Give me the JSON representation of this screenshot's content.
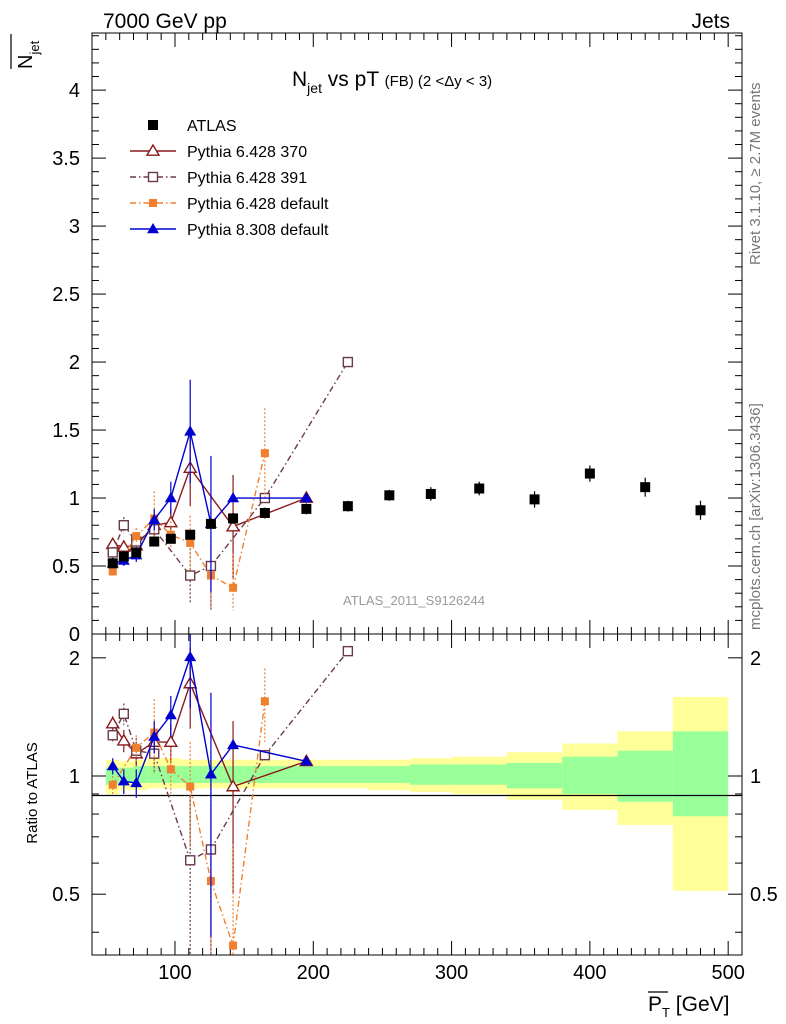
{
  "header": {
    "left": "7000 GeV pp",
    "right": "Jets"
  },
  "side_labels": {
    "rivet": "Rivet 3.1.10, ≥ 2.7M events",
    "mcplots": "mcplots.cern.ch [arXiv:1306.3436]"
  },
  "chart_data": [
    {
      "type": "scatter",
      "title_main": "N",
      "title_sub": "jet",
      "title_rest": " vs pT ",
      "title_small": "(FB) (2 <Δy < 3)",
      "ylabel_main": "N",
      "ylabel_sub": "jet",
      "ylim": [
        0,
        4.42
      ],
      "yticks": [
        "0",
        "0.5",
        "1",
        "1.5",
        "2",
        "2.5",
        "3",
        "3.5",
        "4"
      ],
      "watermark": "ATLAS_2011_S9126244",
      "legend_position": "top-left",
      "series": [
        {
          "name": "ATLAS",
          "color": "#000000",
          "marker": "square-filled",
          "line": "none",
          "x": [
            55,
            63,
            72,
            85,
            97,
            111,
            126,
            142,
            165,
            195,
            225,
            255,
            285,
            320,
            360,
            400,
            440,
            480
          ],
          "y": [
            0.52,
            0.57,
            0.6,
            0.68,
            0.7,
            0.73,
            0.81,
            0.85,
            0.89,
            0.92,
            0.94,
            1.02,
            1.03,
            1.07,
            0.99,
            1.18,
            1.08,
            0.91
          ],
          "err": [
            0.01,
            0.01,
            0.02,
            0.02,
            0.03,
            0.03,
            0.03,
            0.04,
            0.04,
            0.04,
            0.04,
            0.04,
            0.05,
            0.05,
            0.06,
            0.06,
            0.07,
            0.07
          ]
        },
        {
          "name": "Pythia 6.428 370",
          "color": "#8b1a1a",
          "marker": "triangle-open",
          "line": "solid",
          "x": [
            55,
            63,
            72,
            85,
            97,
            111,
            142,
            195
          ],
          "y": [
            0.66,
            0.64,
            0.65,
            0.8,
            0.82,
            1.22,
            0.79,
            1.0
          ],
          "err": [
            0.04,
            0.05,
            0.05,
            0.07,
            0.1,
            0.28,
            0.38,
            0.0
          ]
        },
        {
          "name": "Pythia 6.428 391",
          "color": "#6b3a4a",
          "marker": "square-open",
          "line": "dashdot",
          "x": [
            55,
            63,
            72,
            85,
            111,
            126,
            165,
            225
          ],
          "y": [
            0.6,
            0.8,
            0.68,
            0.77,
            0.43,
            0.5,
            1.0,
            2.0
          ],
          "err": [
            0.04,
            0.06,
            0.06,
            0.08,
            0.2,
            0.4,
            0.0,
            0.0
          ]
        },
        {
          "name": "Pythia 6.428 default",
          "color": "#f08030",
          "marker": "square-filled-small",
          "line": "dashdot",
          "x": [
            55,
            72,
            85,
            97,
            111,
            126,
            142,
            165
          ],
          "y": [
            0.46,
            0.72,
            0.85,
            0.73,
            0.67,
            0.43,
            0.34,
            1.33
          ],
          "err": [
            0.03,
            0.06,
            0.2,
            0.1,
            0.2,
            0.25,
            0.25,
            0.33
          ]
        },
        {
          "name": "Pythia 8.308 default",
          "color": "#0000d0",
          "marker": "triangle-filled",
          "line": "solid",
          "x": [
            55,
            63,
            72,
            85,
            97,
            111,
            126,
            142,
            195
          ],
          "y": [
            0.52,
            0.54,
            0.58,
            0.84,
            1.0,
            1.49,
            0.81,
            1.0,
            1.0
          ],
          "err": [
            0.03,
            0.04,
            0.05,
            0.08,
            0.12,
            0.38,
            0.5,
            0.0,
            0.0
          ]
        }
      ]
    },
    {
      "type": "scatter",
      "ylabel": "Ratio to ATLAS",
      "ylim": [
        0.35,
        2.3
      ],
      "yticks": [
        "0.5",
        "1",
        "2"
      ],
      "xlabel_main": "P",
      "xlabel_sub": "T",
      "xlabel_unit": " [GeV]",
      "xlim": [
        40,
        510
      ],
      "xticks": [
        "100",
        "200",
        "300",
        "400",
        "500"
      ],
      "bands": {
        "yellow_color": "#ffff99",
        "green_color": "#99ff99",
        "bins": [
          {
            "x0": 50,
            "x1": 60,
            "y_lo": 0.9,
            "y_hi": 1.1,
            "g_lo": 0.95,
            "g_hi": 1.05
          },
          {
            "x0": 60,
            "x1": 70,
            "y_lo": 0.92,
            "y_hi": 1.09,
            "g_lo": 0.96,
            "g_hi": 1.05
          },
          {
            "x0": 70,
            "x1": 80,
            "y_lo": 0.92,
            "y_hi": 1.1,
            "g_lo": 0.96,
            "g_hi": 1.06
          },
          {
            "x0": 80,
            "x1": 90,
            "y_lo": 0.93,
            "y_hi": 1.11,
            "g_lo": 0.96,
            "g_hi": 1.06
          },
          {
            "x0": 90,
            "x1": 105,
            "y_lo": 0.93,
            "y_hi": 1.11,
            "g_lo": 0.96,
            "g_hi": 1.06
          },
          {
            "x0": 105,
            "x1": 120,
            "y_lo": 0.93,
            "y_hi": 1.1,
            "g_lo": 0.96,
            "g_hi": 1.06
          },
          {
            "x0": 120,
            "x1": 135,
            "y_lo": 0.93,
            "y_hi": 1.1,
            "g_lo": 0.96,
            "g_hi": 1.06
          },
          {
            "x0": 135,
            "x1": 150,
            "y_lo": 0.93,
            "y_hi": 1.1,
            "g_lo": 0.96,
            "g_hi": 1.06
          },
          {
            "x0": 150,
            "x1": 180,
            "y_lo": 0.93,
            "y_hi": 1.1,
            "g_lo": 0.96,
            "g_hi": 1.06
          },
          {
            "x0": 180,
            "x1": 210,
            "y_lo": 0.93,
            "y_hi": 1.1,
            "g_lo": 0.96,
            "g_hi": 1.06
          },
          {
            "x0": 210,
            "x1": 240,
            "y_lo": 0.93,
            "y_hi": 1.1,
            "g_lo": 0.96,
            "g_hi": 1.06
          },
          {
            "x0": 240,
            "x1": 270,
            "y_lo": 0.92,
            "y_hi": 1.1,
            "g_lo": 0.96,
            "g_hi": 1.06
          },
          {
            "x0": 270,
            "x1": 300,
            "y_lo": 0.91,
            "y_hi": 1.11,
            "g_lo": 0.95,
            "g_hi": 1.07
          },
          {
            "x0": 300,
            "x1": 340,
            "y_lo": 0.9,
            "y_hi": 1.12,
            "g_lo": 0.95,
            "g_hi": 1.07
          },
          {
            "x0": 340,
            "x1": 380,
            "y_lo": 0.87,
            "y_hi": 1.15,
            "g_lo": 0.93,
            "g_hi": 1.08
          },
          {
            "x0": 380,
            "x1": 420,
            "y_lo": 0.82,
            "y_hi": 1.21,
            "g_lo": 0.9,
            "g_hi": 1.12
          },
          {
            "x0": 420,
            "x1": 460,
            "y_lo": 0.75,
            "y_hi": 1.3,
            "g_lo": 0.86,
            "g_hi": 1.16
          },
          {
            "x0": 460,
            "x1": 500,
            "y_lo": 0.51,
            "y_hi": 1.59,
            "g_lo": 0.79,
            "g_hi": 1.3
          }
        ]
      },
      "series": [
        {
          "name": "Pythia 6.428 370",
          "x": [
            55,
            63,
            72,
            85,
            97,
            111,
            142,
            195
          ],
          "y": [
            1.36,
            1.23,
            1.14,
            1.22,
            1.22,
            1.72,
            0.94,
            1.09
          ],
          "err": [
            0.06,
            0.08,
            0.08,
            0.1,
            0.14,
            0.4,
            0.44,
            0.0
          ]
        },
        {
          "name": "Pythia 6.428 391",
          "x": [
            55,
            63,
            72,
            85,
            111,
            126,
            165,
            225
          ],
          "y": [
            1.27,
            1.44,
            1.16,
            1.14,
            0.61,
            0.65,
            1.13,
            2.08
          ],
          "err": [
            0.06,
            0.09,
            0.09,
            0.11,
            0.28,
            0.5,
            0.0,
            0.0
          ]
        },
        {
          "name": "Pythia 6.428 default",
          "x": [
            55,
            72,
            85,
            97,
            111,
            126,
            142,
            165
          ],
          "y": [
            0.95,
            1.18,
            1.29,
            1.04,
            0.94,
            0.54,
            0.37,
            1.55
          ],
          "err": [
            0.05,
            0.09,
            0.28,
            0.14,
            0.28,
            0.3,
            0.3,
            0.33
          ]
        },
        {
          "name": "Pythia 8.308 default",
          "x": [
            55,
            63,
            72,
            85,
            97,
            111,
            126,
            142,
            195
          ],
          "y": [
            1.06,
            0.97,
            0.96,
            1.26,
            1.43,
            2.01,
            1.01,
            1.2,
            1.09
          ],
          "err": [
            0.05,
            0.07,
            0.08,
            0.12,
            0.17,
            0.52,
            0.62,
            0.0,
            0.0
          ]
        }
      ]
    }
  ]
}
